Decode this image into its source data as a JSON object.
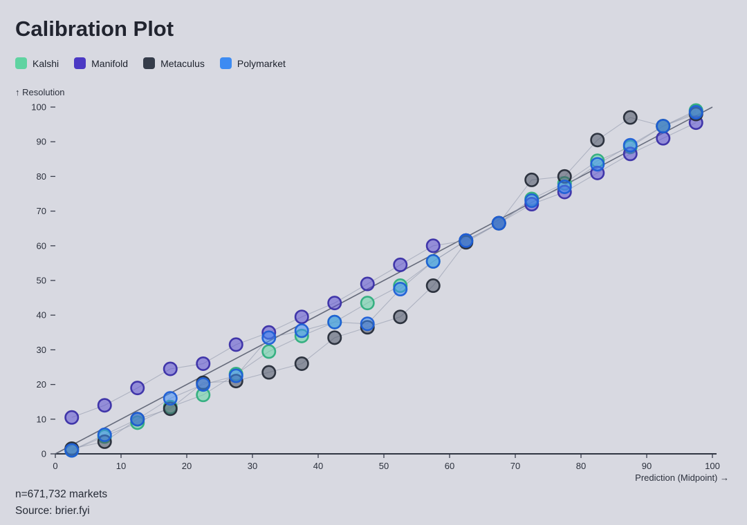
{
  "page": {
    "background": "#d8d9e1"
  },
  "title": "Calibration Plot",
  "legend": [
    {
      "label": "Kalshi",
      "color": "#5fd3a1"
    },
    {
      "label": "Manifold",
      "color": "#4b39c4"
    },
    {
      "label": "Metaculus",
      "color": "#353c4a"
    },
    {
      "label": "Polymarket",
      "color": "#3d8bf2"
    }
  ],
  "chart_data": {
    "type": "scatter",
    "title": "Calibration Plot",
    "xlabel": "Prediction (Midpoint) →",
    "ylabel": "↑ Resolution",
    "xlim": [
      0,
      100
    ],
    "ylim": [
      0,
      100
    ],
    "xticks": [
      0,
      10,
      20,
      30,
      40,
      50,
      60,
      70,
      80,
      90,
      100
    ],
    "yticks": [
      0,
      10,
      20,
      30,
      40,
      50,
      60,
      70,
      80,
      90,
      100
    ],
    "diagonal_reference": true,
    "grid": false,
    "legend_position": "top-left",
    "x": [
      2.5,
      7.5,
      12.5,
      17.5,
      22.5,
      27.5,
      32.5,
      37.5,
      42.5,
      47.5,
      52.5,
      57.5,
      62.5,
      67.5,
      72.5,
      77.5,
      82.5,
      87.5,
      92.5,
      97.5
    ],
    "series": [
      {
        "name": "Kalshi",
        "fill": "#63d6a4",
        "stroke": "#2fae7d",
        "values": [
          1,
          5,
          9,
          13.5,
          17,
          23,
          29.5,
          34,
          38,
          43.5,
          48.5,
          55.5,
          61.5,
          66.5,
          73.5,
          78,
          84.5,
          88.5,
          94.5,
          99
        ]
      },
      {
        "name": "Manifold",
        "fill": "#5b4ed1",
        "stroke": "#3a2fa6",
        "values": [
          10.5,
          14,
          19,
          24.5,
          26,
          31.5,
          35,
          39.5,
          43.5,
          49,
          54.5,
          60,
          61.5,
          66.5,
          72,
          75.5,
          81,
          86.5,
          91,
          95.5
        ]
      },
      {
        "name": "Metaculus",
        "fill": "#4a5264",
        "stroke": "#262c38",
        "values": [
          1.5,
          3.5,
          10,
          13,
          20.5,
          21,
          23.5,
          26,
          33.5,
          36.5,
          39.5,
          48.5,
          61,
          66.5,
          79,
          80,
          90.5,
          97,
          94.5,
          98
        ]
      },
      {
        "name": "Polymarket",
        "fill": "#3f8cf5",
        "stroke": "#1d5fd6",
        "values": [
          1,
          5.5,
          10,
          16,
          20,
          22.5,
          33.5,
          35.5,
          38,
          37.5,
          47.5,
          55.5,
          61.5,
          66.5,
          73,
          77,
          83.5,
          89,
          94.5,
          98.5
        ]
      }
    ]
  },
  "footer": {
    "n_label": "n=671,732 markets",
    "source_label": "Source: brier.fyi"
  }
}
